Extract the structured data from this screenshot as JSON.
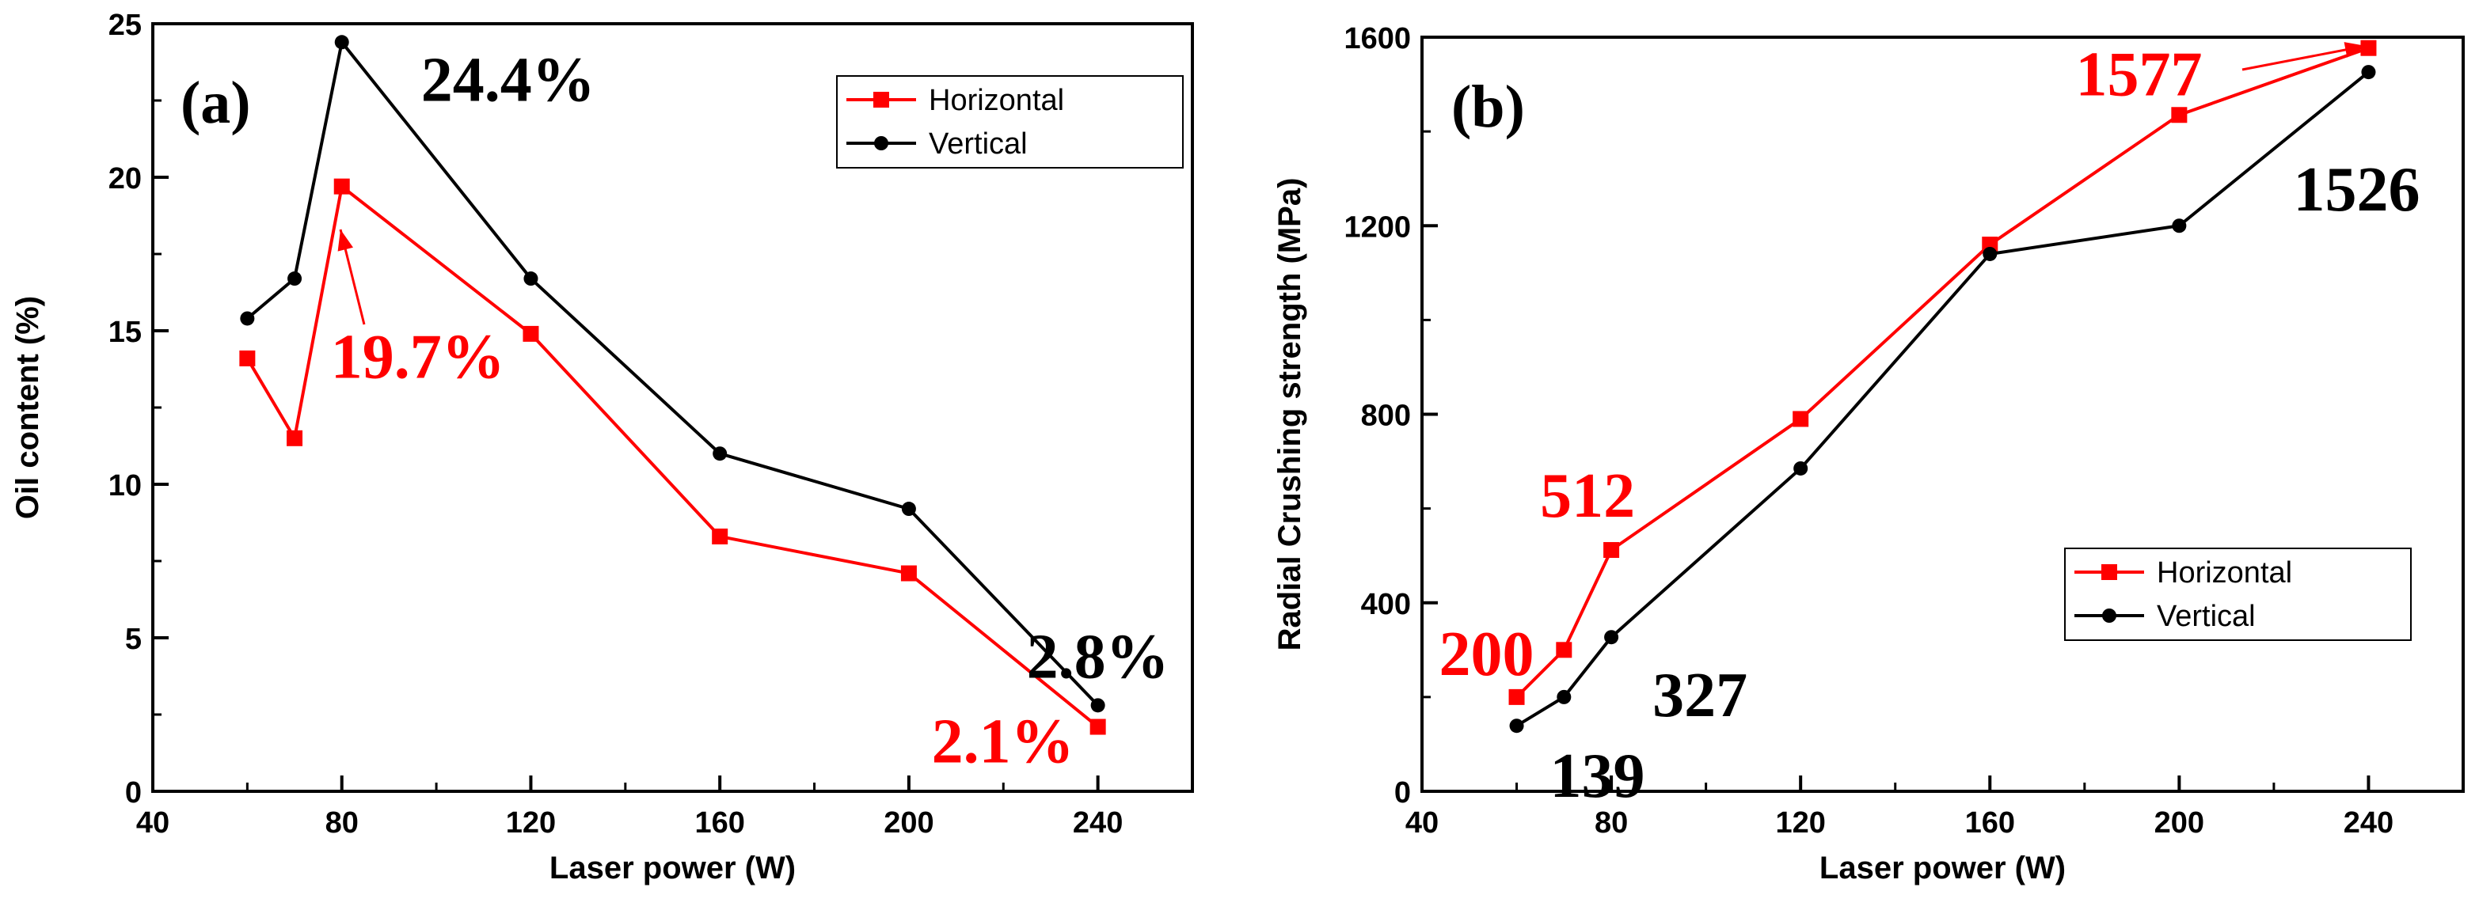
{
  "colors": {
    "horizontal": "#ff0000",
    "vertical": "#000000"
  },
  "chart_data": [
    {
      "type": "line",
      "panel_label": "(a)",
      "xlabel": "Laser power (W)",
      "ylabel": "Oil content (%)",
      "xlim": [
        40,
        260
      ],
      "ylim": [
        0,
        25
      ],
      "x_ticks": [
        40,
        80,
        120,
        160,
        200,
        240
      ],
      "y_ticks": [
        0,
        5,
        10,
        15,
        20,
        25
      ],
      "x_tick_labels": [
        "40",
        "80",
        "120",
        "160",
        "200",
        "240"
      ],
      "y_tick_labels": [
        "0",
        "5",
        "10",
        "15",
        "20",
        "25"
      ],
      "legend": {
        "placement": "top-right",
        "entries": [
          "Horizontal",
          "Vertical"
        ]
      },
      "series": [
        {
          "name": "Horizontal",
          "color": "#ff0000",
          "marker": "square",
          "x": [
            60,
            70,
            80,
            120,
            160,
            200,
            240
          ],
          "y": [
            14.1,
            11.5,
            19.7,
            14.9,
            8.3,
            7.1,
            2.1
          ]
        },
        {
          "name": "Vertical",
          "color": "#000000",
          "marker": "circle",
          "x": [
            60,
            70,
            80,
            120,
            160,
            200,
            240
          ],
          "y": [
            15.4,
            16.7,
            24.4,
            16.7,
            11.0,
            9.2,
            2.8
          ]
        }
      ],
      "annotations": [
        {
          "text": "24.4%",
          "series": "Vertical",
          "x": 80,
          "y": 24.4,
          "color": "#000000"
        },
        {
          "text": "19.7%",
          "series": "Horizontal",
          "x": 80,
          "y": 19.7,
          "color": "#ff0000",
          "arrow": true
        },
        {
          "text": "2.8%",
          "series": "Vertical",
          "x": 240,
          "y": 2.8,
          "color": "#000000"
        },
        {
          "text": "2.1%",
          "series": "Horizontal",
          "x": 240,
          "y": 2.1,
          "color": "#ff0000"
        }
      ]
    },
    {
      "type": "line",
      "panel_label": "(b)",
      "xlabel": "Laser power (W)",
      "ylabel": "Radial Crushing strength (MPa)",
      "xlim": [
        40,
        260
      ],
      "ylim": [
        0,
        1600
      ],
      "x_ticks": [
        40,
        80,
        120,
        160,
        200,
        240
      ],
      "y_ticks": [
        0,
        400,
        800,
        1200,
        1600
      ],
      "x_tick_labels": [
        "40",
        "80",
        "120",
        "160",
        "200",
        "240"
      ],
      "y_tick_labels": [
        "0",
        "400",
        "800",
        "1200",
        "1600"
      ],
      "legend": {
        "placement": "lower-right",
        "entries": [
          "Horizontal",
          "Vertical"
        ]
      },
      "series": [
        {
          "name": "Horizontal",
          "color": "#ff0000",
          "marker": "square",
          "x": [
            60,
            70,
            80,
            120,
            160,
            200,
            240
          ],
          "y": [
            200,
            300,
            512,
            790,
            1160,
            1435,
            1577
          ]
        },
        {
          "name": "Vertical",
          "color": "#000000",
          "marker": "circle",
          "x": [
            60,
            70,
            80,
            120,
            160,
            200,
            240
          ],
          "y": [
            139,
            200,
            327,
            685,
            1140,
            1200,
            1526
          ]
        }
      ],
      "annotations": [
        {
          "text": "1577",
          "series": "Horizontal",
          "x": 240,
          "y": 1577,
          "color": "#ff0000",
          "arrow": true
        },
        {
          "text": "1526",
          "series": "Vertical",
          "x": 240,
          "y": 1526,
          "color": "#000000"
        },
        {
          "text": "512",
          "series": "Horizontal",
          "x": 80,
          "y": 512,
          "color": "#ff0000"
        },
        {
          "text": "200",
          "series": "Horizontal",
          "x": 60,
          "y": 200,
          "color": "#ff0000"
        },
        {
          "text": "327",
          "series": "Vertical",
          "x": 80,
          "y": 327,
          "color": "#000000"
        },
        {
          "text": "139",
          "series": "Vertical",
          "x": 60,
          "y": 139,
          "color": "#000000"
        }
      ]
    }
  ]
}
